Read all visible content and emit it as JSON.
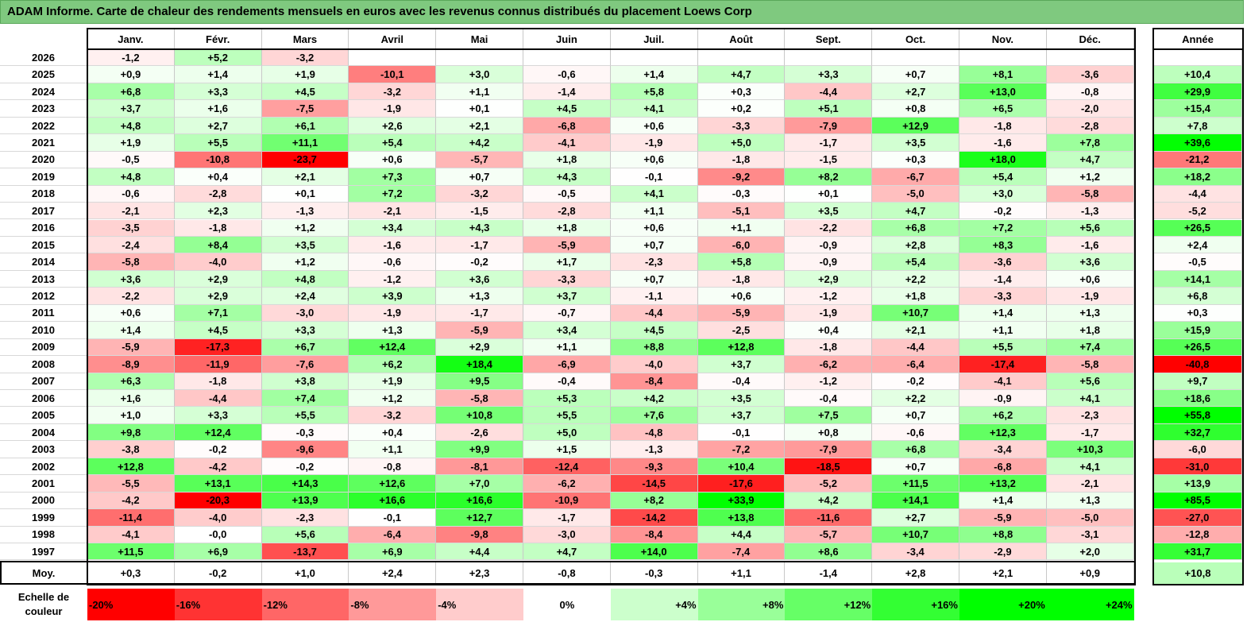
{
  "title": "ADAM Informe. Carte de chaleur des rendements mensuels en euros avec les revenus connus distribués du placement Loews Corp",
  "colors": {
    "neg_max": "#ff0000",
    "pos_max": "#00ff00",
    "neutral": "#ffffff",
    "title_bg": "#7fc97f"
  },
  "chart_data": {
    "type": "heatmap",
    "title": "ADAM Informe. Carte de chaleur des rendements mensuels en euros avec les revenus connus distribués du placement Loews Corp",
    "months": [
      "Janv.",
      "Févr.",
      "Mars",
      "Avril",
      "Mai",
      "Juin",
      "Juil.",
      "Août",
      "Sept.",
      "Oct.",
      "Nov.",
      "Déc."
    ],
    "year_header": "Année",
    "rows": [
      {
        "year": "2026",
        "values": [
          "-1,2",
          "+5,2",
          "-3,2",
          "",
          "",
          "",
          "",
          "",
          "",
          "",
          "",
          ""
        ],
        "annual": ""
      },
      {
        "year": "2025",
        "values": [
          "+0,9",
          "+1,4",
          "+1,9",
          "-10,1",
          "+3,0",
          "-0,6",
          "+1,4",
          "+4,7",
          "+3,3",
          "+0,7",
          "+8,1",
          "-3,6"
        ],
        "annual": "+10,4"
      },
      {
        "year": "2024",
        "values": [
          "+6,8",
          "+3,3",
          "+4,5",
          "-3,2",
          "+1,1",
          "-1,4",
          "+5,8",
          "+0,3",
          "-4,4",
          "+2,7",
          "+13,0",
          "-0,8"
        ],
        "annual": "+29,9"
      },
      {
        "year": "2023",
        "values": [
          "+3,7",
          "+1,6",
          "-7,5",
          "-1,9",
          "+0,1",
          "+4,5",
          "+4,1",
          "+0,2",
          "+5,1",
          "+0,8",
          "+6,5",
          "-2,0"
        ],
        "annual": "+15,4"
      },
      {
        "year": "2022",
        "values": [
          "+4,8",
          "+2,7",
          "+6,1",
          "+2,6",
          "+2,1",
          "-6,8",
          "+0,6",
          "-3,3",
          "-7,9",
          "+12,9",
          "-1,8",
          "-2,8"
        ],
        "annual": "+7,8"
      },
      {
        "year": "2021",
        "values": [
          "+1,9",
          "+5,5",
          "+11,1",
          "+5,4",
          "+4,2",
          "-4,1",
          "-1,9",
          "+5,0",
          "-1,7",
          "+3,5",
          "-1,6",
          "+7,8"
        ],
        "annual": "+39,6"
      },
      {
        "year": "2020",
        "values": [
          "-0,5",
          "-10,8",
          "-23,7",
          "+0,6",
          "-5,7",
          "+1,8",
          "+0,6",
          "-1,8",
          "-1,5",
          "+0,3",
          "+18,0",
          "+4,7"
        ],
        "annual": "-21,2"
      },
      {
        "year": "2019",
        "values": [
          "+4,8",
          "+0,4",
          "+2,1",
          "+7,3",
          "+0,7",
          "+4,3",
          "-0,1",
          "-9,2",
          "+8,2",
          "-6,7",
          "+5,4",
          "+1,2"
        ],
        "annual": "+18,2"
      },
      {
        "year": "2018",
        "values": [
          "-0,6",
          "-2,8",
          "+0,1",
          "+7,2",
          "-3,2",
          "-0,5",
          "+4,1",
          "-0,3",
          "+0,1",
          "-5,0",
          "+3,0",
          "-5,8"
        ],
        "annual": "-4,4"
      },
      {
        "year": "2017",
        "values": [
          "-2,1",
          "+2,3",
          "-1,3",
          "-2,1",
          "-1,5",
          "-2,8",
          "+1,1",
          "-5,1",
          "+3,5",
          "+4,7",
          "-0,2",
          "-1,3"
        ],
        "annual": "-5,2"
      },
      {
        "year": "2016",
        "values": [
          "-3,5",
          "-1,8",
          "+1,2",
          "+3,4",
          "+4,3",
          "+1,8",
          "+0,6",
          "+1,1",
          "-2,2",
          "+6,8",
          "+7,2",
          "+5,6"
        ],
        "annual": "+26,5"
      },
      {
        "year": "2015",
        "values": [
          "-2,4",
          "+8,4",
          "+3,5",
          "-1,6",
          "-1,7",
          "-5,9",
          "+0,7",
          "-6,0",
          "-0,9",
          "+2,8",
          "+8,3",
          "-1,6"
        ],
        "annual": "+2,4"
      },
      {
        "year": "2014",
        "values": [
          "-5,8",
          "-4,0",
          "+1,2",
          "-0,6",
          "-0,2",
          "+1,7",
          "-2,3",
          "+5,8",
          "-0,9",
          "+5,4",
          "-3,6",
          "+3,6"
        ],
        "annual": "-0,5"
      },
      {
        "year": "2013",
        "values": [
          "+3,6",
          "+2,9",
          "+4,8",
          "-1,2",
          "+3,6",
          "-3,3",
          "+0,7",
          "-1,8",
          "+2,9",
          "+2,2",
          "-1,4",
          "+0,6"
        ],
        "annual": "+14,1"
      },
      {
        "year": "2012",
        "values": [
          "-2,2",
          "+2,9",
          "+2,4",
          "+3,9",
          "+1,3",
          "+3,7",
          "-1,1",
          "+0,6",
          "-1,2",
          "+1,8",
          "-3,3",
          "-1,9"
        ],
        "annual": "+6,8"
      },
      {
        "year": "2011",
        "values": [
          "+0,6",
          "+7,1",
          "-3,0",
          "-1,9",
          "-1,7",
          "-0,7",
          "-4,4",
          "-5,9",
          "-1,9",
          "+10,7",
          "+1,4",
          "+1,3"
        ],
        "annual": "+0,3"
      },
      {
        "year": "2010",
        "values": [
          "+1,4",
          "+4,5",
          "+3,3",
          "+1,3",
          "-5,9",
          "+3,4",
          "+4,5",
          "-2,5",
          "+0,4",
          "+2,1",
          "+1,1",
          "+1,8"
        ],
        "annual": "+15,9"
      },
      {
        "year": "2009",
        "values": [
          "-5,9",
          "-17,3",
          "+6,7",
          "+12,4",
          "+2,9",
          "+1,1",
          "+8,8",
          "+12,8",
          "-1,8",
          "-4,4",
          "+5,5",
          "+7,4"
        ],
        "annual": "+26,5"
      },
      {
        "year": "2008",
        "values": [
          "-8,9",
          "-11,9",
          "-7,6",
          "+6,2",
          "+18,4",
          "-6,9",
          "-4,0",
          "+3,7",
          "-6,2",
          "-6,4",
          "-17,4",
          "-5,8"
        ],
        "annual": "-40,8"
      },
      {
        "year": "2007",
        "values": [
          "+6,3",
          "-1,8",
          "+3,8",
          "+1,9",
          "+9,5",
          "-0,4",
          "-8,4",
          "-0,4",
          "-1,2",
          "-0,2",
          "-4,1",
          "+5,6"
        ],
        "annual": "+9,7"
      },
      {
        "year": "2006",
        "values": [
          "+1,6",
          "-4,4",
          "+7,4",
          "+1,2",
          "-5,8",
          "+5,3",
          "+4,2",
          "+3,5",
          "-0,4",
          "+2,2",
          "-0,9",
          "+4,1"
        ],
        "annual": "+18,6"
      },
      {
        "year": "2005",
        "values": [
          "+1,0",
          "+3,3",
          "+5,5",
          "-3,2",
          "+10,8",
          "+5,5",
          "+7,6",
          "+3,7",
          "+7,5",
          "+0,7",
          "+6,2",
          "-2,3"
        ],
        "annual": "+55,8"
      },
      {
        "year": "2004",
        "values": [
          "+9,8",
          "+12,4",
          "-0,3",
          "+0,4",
          "-2,6",
          "+5,0",
          "-4,8",
          "-0,1",
          "+0,8",
          "-0,6",
          "+12,3",
          "-1,7"
        ],
        "annual": "+32,7"
      },
      {
        "year": "2003",
        "values": [
          "-3,8",
          "-0,2",
          "-9,6",
          "+1,1",
          "+9,9",
          "+1,5",
          "-1,3",
          "-7,2",
          "-7,9",
          "+6,8",
          "-3,4",
          "+10,3"
        ],
        "annual": "-6,0"
      },
      {
        "year": "2002",
        "values": [
          "+12,8",
          "-4,2",
          "-0,2",
          "-0,8",
          "-8,1",
          "-12,4",
          "-9,3",
          "+10,4",
          "-18,5",
          "+0,7",
          "-6,8",
          "+4,1"
        ],
        "annual": "-31,0"
      },
      {
        "year": "2001",
        "values": [
          "-5,5",
          "+13,1",
          "+14,3",
          "+12,6",
          "+7,0",
          "-6,2",
          "-14,5",
          "-17,6",
          "-5,2",
          "+11,5",
          "+13,2",
          "-2,1"
        ],
        "annual": "+13,9"
      },
      {
        "year": "2000",
        "values": [
          "-4,2",
          "-20,3",
          "+13,9",
          "+16,6",
          "+16,6",
          "-10,9",
          "+8,2",
          "+33,9",
          "+4,2",
          "+14,1",
          "+1,4",
          "+1,3"
        ],
        "annual": "+85,5"
      },
      {
        "year": "1999",
        "values": [
          "-11,4",
          "-4,0",
          "-2,3",
          "-0,1",
          "+12,7",
          "-1,7",
          "-14,2",
          "+13,8",
          "-11,6",
          "+2,7",
          "-5,9",
          "-5,0"
        ],
        "annual": "-27,0"
      },
      {
        "year": "1998",
        "values": [
          "-4,1",
          "-0,0",
          "+5,6",
          "-6,4",
          "-9,8",
          "-3,0",
          "-8,4",
          "+4,4",
          "-5,7",
          "+10,7",
          "+8,8",
          "-3,1"
        ],
        "annual": "-12,8"
      },
      {
        "year": "1997",
        "values": [
          "+11,5",
          "+6,9",
          "-13,7",
          "+6,9",
          "+4,4",
          "+4,7",
          "+14,0",
          "-7,4",
          "+8,6",
          "-3,4",
          "-2,9",
          "+2,0"
        ],
        "annual": "+31,7"
      }
    ],
    "average": {
      "label": "Moy.",
      "values": [
        "+0,3",
        "-0,2",
        "+1,0",
        "+2,4",
        "+2,3",
        "-0,8",
        "-0,3",
        "+1,1",
        "-1,4",
        "+2,8",
        "+2,1",
        "+0,9"
      ],
      "annual": "+10,8"
    },
    "scale": {
      "label": "Echelle de couleur",
      "items": [
        "-20%",
        "-16%",
        "-12%",
        "-8%",
        "-4%",
        "0%",
        "+4%",
        "+8%",
        "+12%",
        "+16%",
        "+20%",
        "+24%"
      ],
      "values": [
        -20,
        -16,
        -12,
        -8,
        -4,
        0,
        4,
        8,
        12,
        16,
        20,
        24
      ]
    }
  }
}
